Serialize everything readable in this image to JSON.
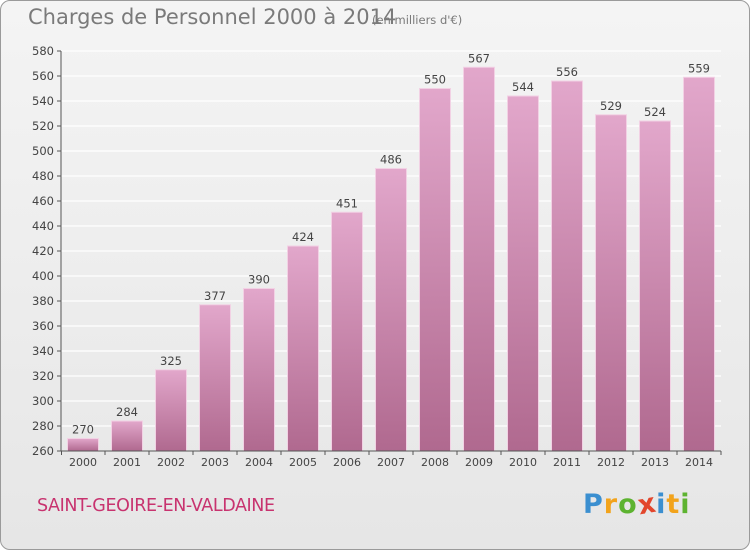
{
  "header": {
    "title": "Charges de Personnel 2000 à 2014",
    "subtitle": "(en milliers d'€)"
  },
  "footer": {
    "commune": "SAINT-GEOIRE-EN-VALDAINE",
    "logo_letters": [
      {
        "char": "P",
        "color": "#3b8fd0"
      },
      {
        "char": "r",
        "color": "#f2a31b"
      },
      {
        "char": "o",
        "color": "#5db330"
      },
      {
        "char": "x",
        "color": "#e2462c"
      },
      {
        "char": "i",
        "color": "#3b8fd0"
      },
      {
        "char": "t",
        "color": "#f2a31b"
      },
      {
        "char": "i",
        "color": "#5db330"
      }
    ]
  },
  "colors": {
    "bar_top": "#e2a7cb",
    "bar_bottom": "#b0698f",
    "bar_edge": "#f2d1e4",
    "grid": "#ffffff",
    "axis": "#555555",
    "tick_text": "#444444",
    "title": "#7a7a7a",
    "commune": "#c8336f"
  },
  "chart_data": {
    "type": "bar",
    "categories": [
      "2000",
      "2001",
      "2002",
      "2003",
      "2004",
      "2005",
      "2006",
      "2007",
      "2008",
      "2009",
      "2010",
      "2011",
      "2012",
      "2013",
      "2014"
    ],
    "values": [
      270,
      284,
      325,
      377,
      390,
      424,
      451,
      486,
      550,
      567,
      544,
      556,
      529,
      524,
      559
    ],
    "title": "Charges de Personnel 2000 à 2014",
    "subtitle": "(en milliers d'€)",
    "xlabel": "",
    "ylabel": "",
    "ylim": [
      260,
      580
    ],
    "yticks": [
      260,
      280,
      300,
      320,
      340,
      360,
      380,
      400,
      420,
      440,
      460,
      480,
      500,
      520,
      540,
      560,
      580
    ],
    "grid": true,
    "legend": "none"
  }
}
